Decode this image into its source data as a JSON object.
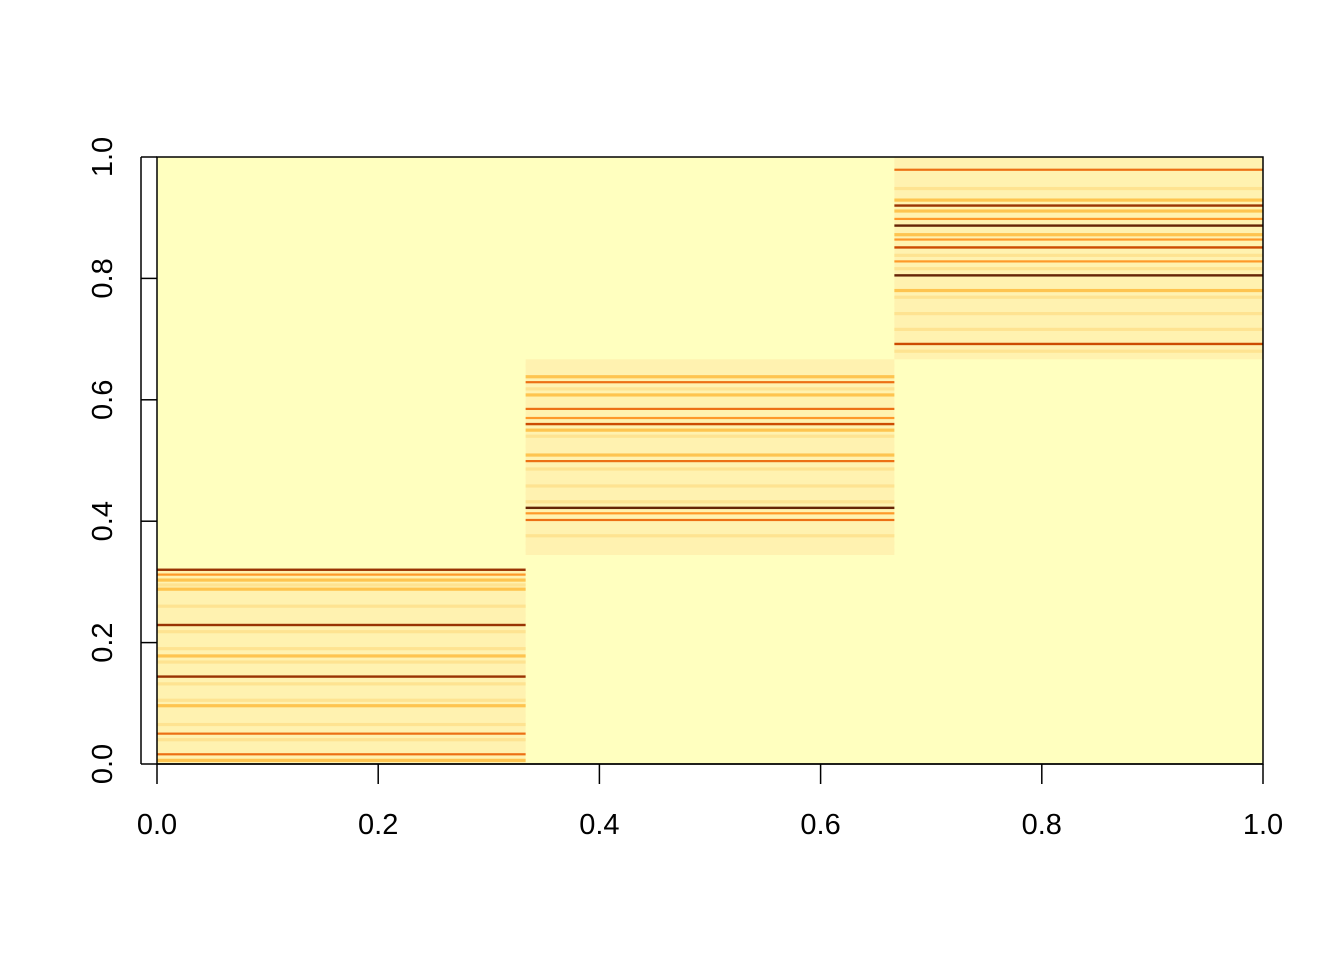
{
  "chart_data": {
    "type": "heatmap",
    "title": "",
    "xlabel": "",
    "ylabel": "",
    "xlim": [
      0,
      1
    ],
    "ylim": [
      0,
      1
    ],
    "x_ticks": [
      "0.0",
      "0.2",
      "0.4",
      "0.6",
      "0.8",
      "1.0"
    ],
    "y_ticks": [
      "0.0",
      "0.2",
      "0.4",
      "0.6",
      "0.8",
      "1.0"
    ],
    "x_tick_values": [
      0,
      0.2,
      0.4,
      0.6,
      0.8,
      1.0
    ],
    "y_tick_values": [
      0,
      0.2,
      0.4,
      0.6,
      0.8,
      1.0
    ],
    "grid": false,
    "colors": {
      "background": "#ffffbf",
      "palette": [
        "#ffffcc",
        "#fff2b0",
        "#fee391",
        "#fec44f",
        "#fe9929",
        "#ec7014",
        "#cc4c02",
        "#993404",
        "#662506"
      ]
    },
    "blocks": [
      {
        "x_range": [
          0.0,
          0.3333
        ],
        "y_range": [
          0.0,
          0.3222
        ],
        "lines": [
          {
            "y": 0.32,
            "level": 7
          },
          {
            "y": 0.312,
            "level": 4
          },
          {
            "y": 0.303,
            "level": 3
          },
          {
            "y": 0.295,
            "level": 2
          },
          {
            "y": 0.288,
            "level": 3
          },
          {
            "y": 0.278,
            "level": 1
          },
          {
            "y": 0.26,
            "level": 2
          },
          {
            "y": 0.245,
            "level": 1
          },
          {
            "y": 0.229,
            "level": 7
          },
          {
            "y": 0.218,
            "level": 2
          },
          {
            "y": 0.205,
            "level": 1
          },
          {
            "y": 0.19,
            "level": 2
          },
          {
            "y": 0.178,
            "level": 3
          },
          {
            "y": 0.168,
            "level": 2
          },
          {
            "y": 0.156,
            "level": 1
          },
          {
            "y": 0.144,
            "level": 7
          },
          {
            "y": 0.132,
            "level": 2
          },
          {
            "y": 0.118,
            "level": 1
          },
          {
            "y": 0.105,
            "level": 2
          },
          {
            "y": 0.096,
            "level": 3
          },
          {
            "y": 0.08,
            "level": 1
          },
          {
            "y": 0.065,
            "level": 2
          },
          {
            "y": 0.05,
            "level": 5
          },
          {
            "y": 0.04,
            "level": 2
          },
          {
            "y": 0.028,
            "level": 1
          },
          {
            "y": 0.016,
            "level": 5
          },
          {
            "y": 0.006,
            "level": 3
          }
        ]
      },
      {
        "x_range": [
          0.3333,
          0.6667
        ],
        "y_range": [
          0.3444,
          0.6667
        ],
        "lines": [
          {
            "y": 0.656,
            "level": 1
          },
          {
            "y": 0.638,
            "level": 3
          },
          {
            "y": 0.629,
            "level": 5
          },
          {
            "y": 0.618,
            "level": 2
          },
          {
            "y": 0.608,
            "level": 3
          },
          {
            "y": 0.596,
            "level": 1
          },
          {
            "y": 0.585,
            "level": 5
          },
          {
            "y": 0.57,
            "level": 4
          },
          {
            "y": 0.56,
            "level": 6
          },
          {
            "y": 0.55,
            "level": 3
          },
          {
            "y": 0.54,
            "level": 2
          },
          {
            "y": 0.523,
            "level": 1
          },
          {
            "y": 0.509,
            "level": 3
          },
          {
            "y": 0.499,
            "level": 5
          },
          {
            "y": 0.486,
            "level": 2
          },
          {
            "y": 0.472,
            "level": 1
          },
          {
            "y": 0.458,
            "level": 2
          },
          {
            "y": 0.446,
            "level": 1
          },
          {
            "y": 0.432,
            "level": 2
          },
          {
            "y": 0.422,
            "level": 8
          },
          {
            "y": 0.413,
            "level": 4
          },
          {
            "y": 0.402,
            "level": 5
          },
          {
            "y": 0.388,
            "level": 1
          },
          {
            "y": 0.376,
            "level": 2
          },
          {
            "y": 0.364,
            "level": 1
          },
          {
            "y": 0.352,
            "level": 1
          }
        ]
      },
      {
        "x_range": [
          0.6667,
          1.0
        ],
        "y_range": [
          0.6667,
          1.0
        ],
        "lines": [
          {
            "y": 0.992,
            "level": 1
          },
          {
            "y": 0.979,
            "level": 5
          },
          {
            "y": 0.962,
            "level": 1
          },
          {
            "y": 0.948,
            "level": 2
          },
          {
            "y": 0.929,
            "level": 3
          },
          {
            "y": 0.92,
            "level": 7
          },
          {
            "y": 0.911,
            "level": 3
          },
          {
            "y": 0.898,
            "level": 4
          },
          {
            "y": 0.887,
            "level": 8
          },
          {
            "y": 0.872,
            "level": 3
          },
          {
            "y": 0.864,
            "level": 4
          },
          {
            "y": 0.851,
            "level": 6
          },
          {
            "y": 0.838,
            "level": 2
          },
          {
            "y": 0.828,
            "level": 4
          },
          {
            "y": 0.816,
            "level": 2
          },
          {
            "y": 0.805,
            "level": 8
          },
          {
            "y": 0.792,
            "level": 1
          },
          {
            "y": 0.78,
            "level": 3
          },
          {
            "y": 0.769,
            "level": 2
          },
          {
            "y": 0.756,
            "level": 1
          },
          {
            "y": 0.742,
            "level": 2
          },
          {
            "y": 0.729,
            "level": 1
          },
          {
            "y": 0.716,
            "level": 2
          },
          {
            "y": 0.704,
            "level": 1
          },
          {
            "y": 0.692,
            "level": 6
          },
          {
            "y": 0.68,
            "level": 2
          },
          {
            "y": 0.671,
            "level": 1
          }
        ]
      }
    ]
  }
}
